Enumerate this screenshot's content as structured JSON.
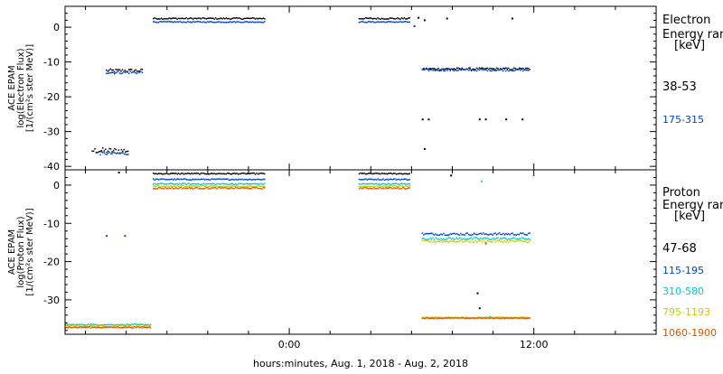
{
  "chart_data": [
    {
      "type": "scatter",
      "panel": "electron",
      "ylabel_lines": [
        "ACE EPAM",
        "log(Electron Flux)",
        "[1/(cm²s ster MeV)]"
      ],
      "ylim": [
        -41,
        6
      ],
      "y_ticks": [
        0,
        -10,
        -20,
        -30,
        -40
      ],
      "legend_title_lines": [
        "Electron",
        "Energy ranges",
        "[keV]"
      ],
      "legend_placement": "right",
      "series": [
        {
          "name": "38-53",
          "color": "#000000",
          "segments": [
            {
              "x_start": -9.0,
              "x_end": -7.2,
              "y": -12.5,
              "noise": 0.5
            },
            {
              "x_start": -9.7,
              "x_end": -7.9,
              "y": -35.5,
              "noise": 0.8
            },
            {
              "x_start": -6.7,
              "x_end": -1.2,
              "y": 2.5,
              "noise": 0.2
            },
            {
              "x_start": 3.4,
              "x_end": 5.9,
              "y": 2.5,
              "noise": 0.2
            },
            {
              "x_start": 6.5,
              "x_end": 11.8,
              "y": -12.0,
              "noise": 0.3
            }
          ],
          "points": [
            [
              6.3,
              2.7
            ],
            [
              6.6,
              2.0
            ],
            [
              7.7,
              2.5
            ],
            [
              10.9,
              2.5
            ],
            [
              6.5,
              -26.5
            ],
            [
              6.8,
              -26.5
            ],
            [
              9.3,
              -26.5
            ],
            [
              9.6,
              -26.5
            ],
            [
              10.6,
              -26.5
            ],
            [
              11.4,
              -26.5
            ],
            [
              6.6,
              -35.0
            ]
          ]
        },
        {
          "name": "175-315",
          "color": "#0044cc",
          "segments": [
            {
              "x_start": -9.0,
              "x_end": -7.2,
              "y": -13.0,
              "noise": 0.4
            },
            {
              "x_start": -9.3,
              "x_end": -7.9,
              "y": -36.3,
              "noise": 0.4
            },
            {
              "x_start": -6.7,
              "x_end": -1.2,
              "y": 1.5,
              "noise": 0.15
            },
            {
              "x_start": 3.4,
              "x_end": 5.9,
              "y": 1.5,
              "noise": 0.15
            },
            {
              "x_start": 6.5,
              "x_end": 11.8,
              "y": -12.3,
              "noise": 0.3
            }
          ],
          "points": [
            [
              6.1,
              0.3
            ]
          ]
        }
      ]
    },
    {
      "type": "scatter",
      "panel": "proton",
      "ylabel_lines": [
        "ACE EPAM",
        "log(Proton Flux)",
        "[1/(cm²s ster MeV)]"
      ],
      "ylim": [
        -39,
        4
      ],
      "y_ticks": [
        0,
        -10,
        -20,
        -30
      ],
      "legend_title_lines": [
        "Proton",
        "Energy ranges",
        "[keV]"
      ],
      "legend_placement": "right",
      "series": [
        {
          "name": "47-68",
          "color": "#000000",
          "segments": [
            {
              "x_start": -6.7,
              "x_end": -1.2,
              "y": 3.0,
              "noise": 0.15
            },
            {
              "x_start": 3.4,
              "x_end": 5.9,
              "y": 3.0,
              "noise": 0.15
            }
          ],
          "points": [
            [
              -8.4,
              3.3
            ],
            [
              7.9,
              2.5
            ],
            [
              9.2,
              -28.3
            ],
            [
              9.3,
              -32.2
            ]
          ]
        },
        {
          "name": "115-195",
          "color": "#0044cc",
          "segments": [
            {
              "x_start": -6.7,
              "x_end": -1.2,
              "y": 1.5,
              "noise": 0.15
            },
            {
              "x_start": 3.4,
              "x_end": 5.9,
              "y": 1.5,
              "noise": 0.15
            },
            {
              "x_start": 6.5,
              "x_end": 11.8,
              "y": -12.8,
              "noise": 0.3
            }
          ],
          "points": [
            [
              -9.0,
              -13.3
            ],
            [
              -8.1,
              -13.3
            ]
          ]
        },
        {
          "name": "310-580",
          "color": "#00cccc",
          "segments": [
            {
              "x_start": -11.0,
              "x_end": -6.8,
              "y": -36.5,
              "noise": 0.15
            },
            {
              "x_start": -6.7,
              "x_end": -1.2,
              "y": 0.3,
              "noise": 0.15
            },
            {
              "x_start": 3.4,
              "x_end": 5.9,
              "y": 0.3,
              "noise": 0.15
            },
            {
              "x_start": 6.5,
              "x_end": 11.8,
              "y": -14.0,
              "noise": 0.3
            }
          ],
          "points": [
            [
              9.4,
              1.0
            ],
            [
              9.8,
              -34.5
            ]
          ]
        },
        {
          "name": "795-1193",
          "color": "#cccc00",
          "segments": [
            {
              "x_start": -11.0,
              "x_end": -6.8,
              "y": -36.9,
              "noise": 0.15
            },
            {
              "x_start": -6.7,
              "x_end": -1.2,
              "y": -0.3,
              "noise": 0.15
            },
            {
              "x_start": 3.4,
              "x_end": 5.9,
              "y": -0.3,
              "noise": 0.15
            },
            {
              "x_start": 6.5,
              "x_end": 11.8,
              "y": -14.7,
              "noise": 0.3
            },
            {
              "x_start": 6.5,
              "x_end": 11.8,
              "y": -34.6,
              "noise": 0.1
            }
          ],
          "points": []
        },
        {
          "name": "1060-1900",
          "color": "#dd5500",
          "segments": [
            {
              "x_start": -11.0,
              "x_end": -6.8,
              "y": -37.2,
              "noise": 0.15
            },
            {
              "x_start": -6.7,
              "x_end": -1.2,
              "y": -0.8,
              "noise": 0.2
            },
            {
              "x_start": 3.4,
              "x_end": 5.9,
              "y": -0.8,
              "noise": 0.2
            },
            {
              "x_start": 6.5,
              "x_end": 11.8,
              "y": -34.8,
              "noise": 0.1
            }
          ],
          "points": [
            [
              9.6,
              -15.3
            ]
          ]
        }
      ]
    }
  ],
  "x_axis": {
    "xlim": [
      -11.0,
      18.0
    ],
    "tick_labels": [
      {
        "x": 0,
        "label": "0:00"
      },
      {
        "x": 12,
        "label": "12:00"
      }
    ],
    "minor_step": 2,
    "xlabel": "hours:minutes, Aug.  1, 2018 - Aug.  2, 2018"
  }
}
